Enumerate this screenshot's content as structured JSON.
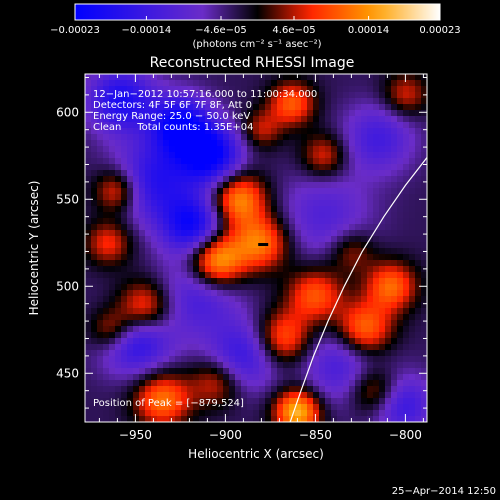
{
  "chart_data": {
    "type": "heatmap",
    "title": "Reconstructed RHESSI Image",
    "xlabel": "Heliocentric X (arcsec)",
    "ylabel": "Heliocentric Y (arcsec)",
    "xlim": [
      -978,
      -788
    ],
    "ylim": [
      422,
      622
    ],
    "x_ticks": [
      -950,
      -900,
      -850,
      -800
    ],
    "x_tick_labels": [
      "−950",
      "−900",
      "−850",
      "−800"
    ],
    "y_ticks": [
      450,
      500,
      550,
      600
    ],
    "y_tick_labels": [
      "450",
      "500",
      "550",
      "600"
    ],
    "colorbar": {
      "range": [
        -0.00023,
        0.00023
      ],
      "ticks": [
        -0.00023,
        -0.00014,
        -4.6e-05,
        4.6e-05,
        0.00014,
        0.00023
      ],
      "tick_labels": [
        "−0.00023",
        "−0.00014",
        "−4.6e−05",
        "4.6e−05",
        "0.00014",
        "0.00023"
      ],
      "unit_label": "(photons cm⁻² s⁻¹ asec⁻²)",
      "colors": [
        "#0000ff",
        "#6a2cc8",
        "#000000",
        "#ff2000",
        "#ffa000",
        "#ffffff"
      ]
    },
    "annotations": [
      "12−Jan−2012 10:57:16.000 to 11:00:34.000",
      "Detectors: 4F 5F 6F 7F 8F, Att 0",
      "Energy Range: 25.0 − 50.0 keV",
      "Clean     Total counts: 1.35E+04"
    ],
    "peak_label": "Position of Peak = [−879,524]",
    "peak": [
      -879,
      524
    ],
    "limb_curve": [
      [
        -864,
        422
      ],
      [
        -858,
        440
      ],
      [
        -851,
        460
      ],
      [
        -843,
        480
      ],
      [
        -834,
        500
      ],
      [
        -824,
        520
      ],
      [
        -812,
        540
      ],
      [
        -800,
        558
      ],
      [
        -788,
        574
      ]
    ],
    "field": {
      "base": -3e-05,
      "blobs": [
        [
          -958,
          607,
          -0.00016,
          13
        ],
        [
          -925,
          592,
          -0.0002,
          12
        ],
        [
          -908,
          575,
          -0.0002,
          12
        ],
        [
          -940,
          560,
          -0.00014,
          16
        ],
        [
          -918,
          535,
          -0.00018,
          12
        ],
        [
          -950,
          470,
          -0.00016,
          14
        ],
        [
          -915,
          495,
          -0.0001,
          16
        ],
        [
          -890,
          460,
          -0.00012,
          14
        ],
        [
          -835,
          455,
          -0.0001,
          16
        ],
        [
          -802,
          432,
          -0.00012,
          12
        ],
        [
          -815,
          585,
          -0.0001,
          14
        ],
        [
          -845,
          540,
          -8e-05,
          18
        ],
        [
          -905,
          515,
          0.00021,
          11
        ],
        [
          -893,
          550,
          0.00017,
          11
        ],
        [
          -880,
          525,
          0.00015,
          11
        ],
        [
          -945,
          487,
          0.00016,
          11
        ],
        [
          -963,
          475,
          0.00012,
          9
        ],
        [
          -935,
          435,
          0.00015,
          11
        ],
        [
          -905,
          445,
          0.0001,
          10
        ],
        [
          -868,
          470,
          0.00014,
          11
        ],
        [
          -850,
          495,
          0.00013,
          11
        ],
        [
          -823,
          475,
          0.00016,
          11
        ],
        [
          -808,
          500,
          0.00014,
          10
        ],
        [
          -817,
          440,
          0.00012,
          10
        ],
        [
          -860,
          428,
          0.0002,
          9
        ],
        [
          -965,
          525,
          0.0001,
          9
        ],
        [
          -960,
          555,
          0.00013,
          9
        ],
        [
          -863,
          605,
          0.00013,
          9
        ],
        [
          -845,
          575,
          0.0001,
          9
        ],
        [
          -800,
          610,
          9e-05,
          9
        ],
        [
          -830,
          520,
          8e-05,
          9
        ],
        [
          -880,
          590,
          8e-05,
          8
        ]
      ]
    }
  },
  "footer": {
    "date": "25−Apr−2014 12:50"
  }
}
